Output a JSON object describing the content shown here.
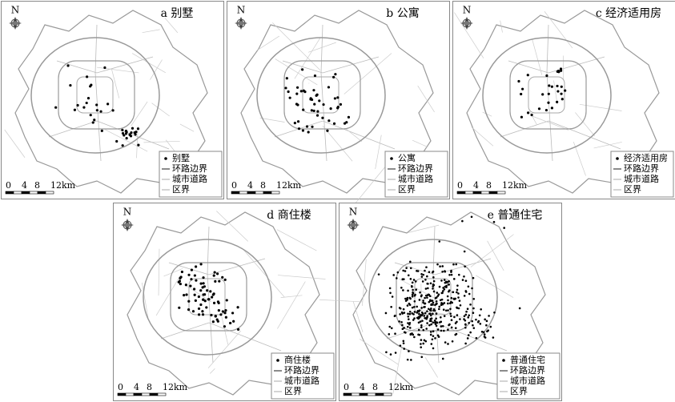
{
  "panels": [
    {
      "title": "a 别墅",
      "north": "N",
      "legend": [
        "别墅",
        "环路边界",
        "城市道路",
        "区界"
      ],
      "scale": [
        "0",
        "4",
        "8",
        "12km"
      ]
    },
    {
      "title": "b 公寓",
      "north": "N",
      "legend": [
        "公寓",
        "环路边界",
        "城市道路",
        "区界"
      ],
      "scale": [
        "0",
        "4",
        "8",
        "12km"
      ]
    },
    {
      "title": "c 经济适用房",
      "north": "N",
      "legend": [
        "经济适用房",
        "环路边界",
        "城市道路",
        "区界"
      ],
      "scale": [
        "0",
        "4",
        "8",
        "12km"
      ]
    },
    {
      "title": "d 商住楼",
      "north": "N",
      "legend": [
        "商住楼",
        "环路边界",
        "城市道路",
        "区界"
      ],
      "scale": [
        "0",
        "4",
        "8",
        "12km"
      ]
    },
    {
      "title": "e 普通住宅",
      "north": "N",
      "legend": [
        "普通住宅",
        "环路边界",
        "城市道路",
        "区界"
      ],
      "scale": [
        "0",
        "4",
        "8",
        "12km"
      ]
    }
  ]
}
